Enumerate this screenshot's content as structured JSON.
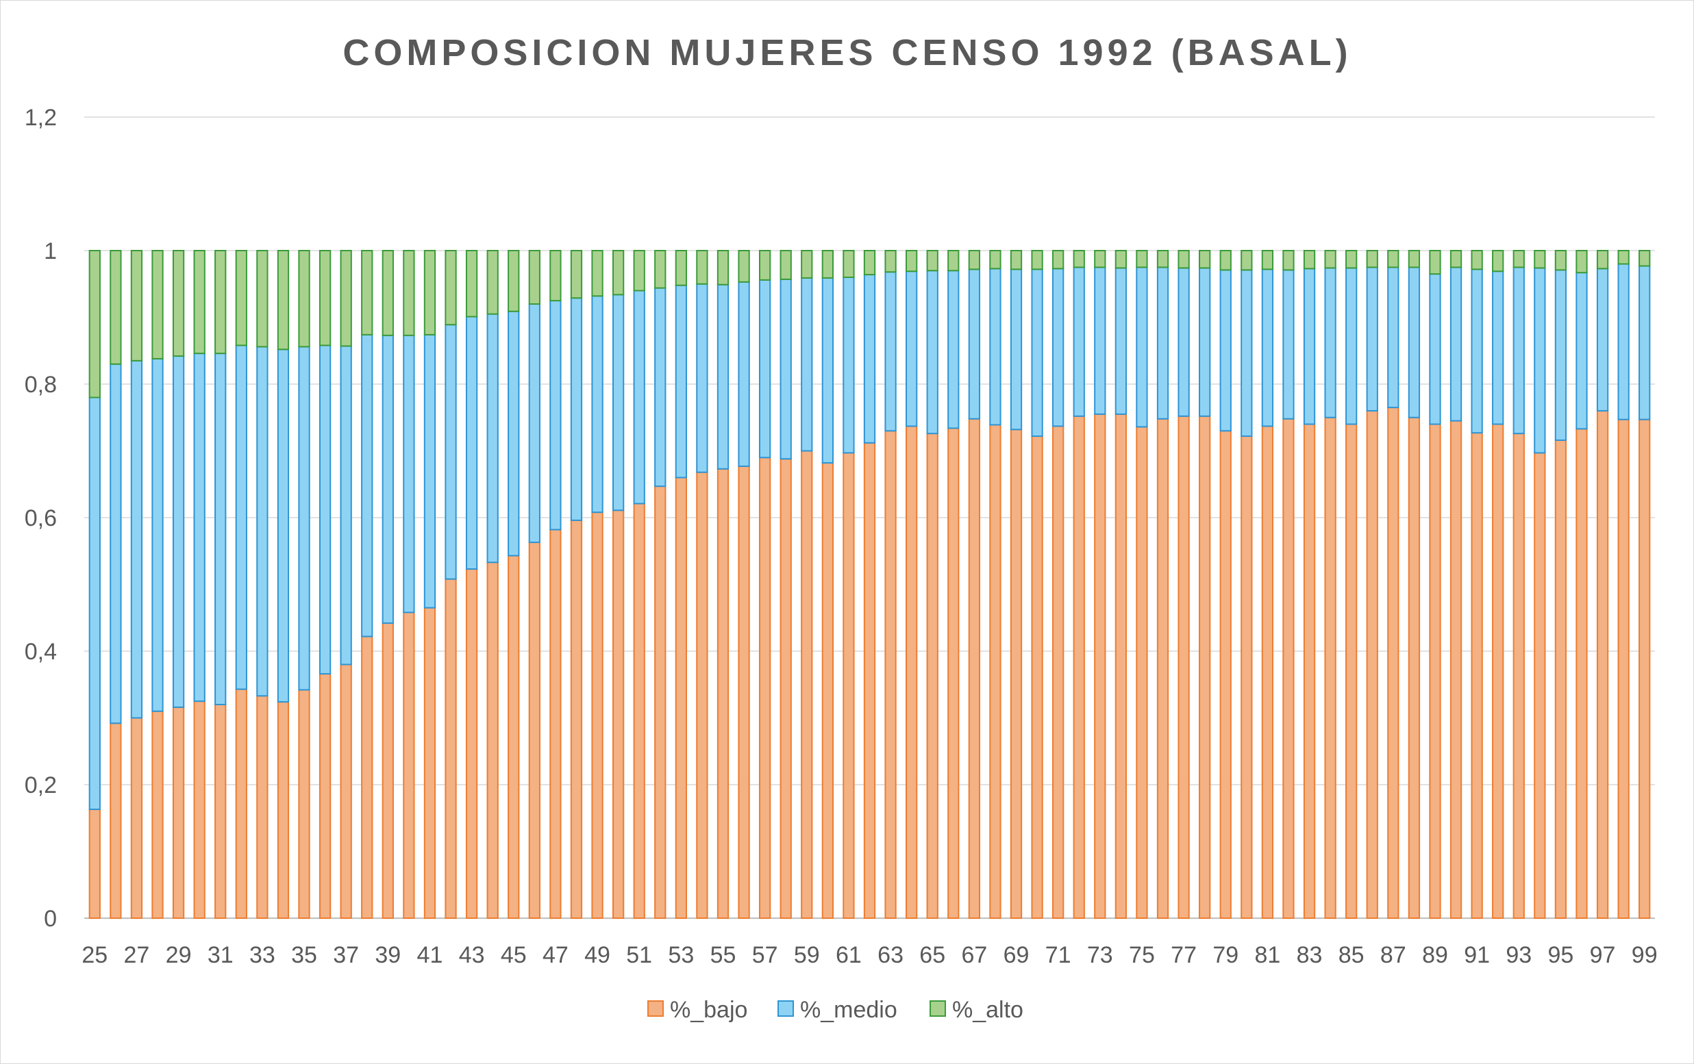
{
  "chart_data": {
    "type": "bar",
    "stacked": true,
    "title": "COMPOSICION MUJERES CENSO 1992 (BASAL)",
    "xlabel": "",
    "ylabel": "",
    "ylim": [
      0,
      1.2
    ],
    "yticks": [
      "0",
      "0,2",
      "0,4",
      "0,6",
      "0,8",
      "1",
      "1,2"
    ],
    "grid": true,
    "legend_position": "bottom",
    "categories": [
      25,
      26,
      27,
      28,
      29,
      30,
      31,
      32,
      33,
      34,
      35,
      36,
      37,
      38,
      39,
      40,
      41,
      42,
      43,
      44,
      45,
      46,
      47,
      48,
      49,
      50,
      51,
      52,
      53,
      54,
      55,
      56,
      57,
      58,
      59,
      60,
      61,
      62,
      63,
      64,
      65,
      66,
      67,
      68,
      69,
      70,
      71,
      72,
      73,
      74,
      75,
      76,
      77,
      78,
      79,
      80,
      81,
      82,
      83,
      84,
      85,
      86,
      87,
      88,
      89,
      90,
      91,
      92,
      93,
      94,
      95,
      96,
      97,
      98,
      99
    ],
    "tick_labels": [
      "25",
      "27",
      "29",
      "31",
      "33",
      "35",
      "37",
      "39",
      "41",
      "43",
      "45",
      "47",
      "49",
      "51",
      "53",
      "55",
      "57",
      "59",
      "61",
      "63",
      "65",
      "67",
      "69",
      "71",
      "73",
      "75",
      "77",
      "79",
      "81",
      "83",
      "85",
      "87",
      "89",
      "91",
      "93",
      "95",
      "97",
      "99"
    ],
    "series": [
      {
        "name": "%_bajo",
        "color": "#f4b183",
        "border": "#ed7d31",
        "values": [
          0.163,
          0.292,
          0.3,
          0.31,
          0.316,
          0.325,
          0.32,
          0.343,
          0.333,
          0.324,
          0.342,
          0.366,
          0.38,
          0.422,
          0.442,
          0.458,
          0.465,
          0.508,
          0.523,
          0.533,
          0.543,
          0.563,
          0.582,
          0.596,
          0.608,
          0.611,
          0.621,
          0.647,
          0.66,
          0.668,
          0.673,
          0.677,
          0.69,
          0.688,
          0.7,
          0.682,
          0.697,
          0.712,
          0.73,
          0.737,
          0.726,
          0.734,
          0.748,
          0.739,
          0.732,
          0.722,
          0.737,
          0.752,
          0.755,
          0.755,
          0.736,
          0.748,
          0.752,
          0.752,
          0.73,
          0.722,
          0.737,
          0.748,
          0.74,
          0.75,
          0.74,
          0.76,
          0.765,
          0.75,
          0.74,
          0.745,
          0.727,
          0.74,
          0.726,
          0.697,
          0.716,
          0.733,
          0.76,
          0.747,
          0.747
        ]
      },
      {
        "name": "%_medio",
        "color": "#8fd3f4",
        "border": "#2e94d4",
        "values": [
          0.617,
          0.538,
          0.535,
          0.528,
          0.526,
          0.521,
          0.526,
          0.515,
          0.523,
          0.528,
          0.514,
          0.492,
          0.477,
          0.452,
          0.431,
          0.415,
          0.409,
          0.381,
          0.378,
          0.372,
          0.366,
          0.357,
          0.343,
          0.333,
          0.324,
          0.323,
          0.319,
          0.297,
          0.288,
          0.282,
          0.276,
          0.276,
          0.266,
          0.269,
          0.259,
          0.277,
          0.263,
          0.252,
          0.238,
          0.232,
          0.244,
          0.236,
          0.224,
          0.234,
          0.24,
          0.25,
          0.236,
          0.223,
          0.22,
          0.219,
          0.239,
          0.227,
          0.222,
          0.222,
          0.241,
          0.249,
          0.235,
          0.223,
          0.233,
          0.224,
          0.234,
          0.215,
          0.21,
          0.225,
          0.225,
          0.23,
          0.245,
          0.229,
          0.249,
          0.277,
          0.255,
          0.234,
          0.213,
          0.233,
          0.23
        ]
      },
      {
        "name": "%_alto",
        "color": "#a9d18e",
        "border": "#3a9b3a",
        "values": [
          0.22,
          0.17,
          0.165,
          0.162,
          0.158,
          0.154,
          0.154,
          0.142,
          0.144,
          0.148,
          0.144,
          0.142,
          0.143,
          0.126,
          0.127,
          0.127,
          0.126,
          0.111,
          0.099,
          0.095,
          0.091,
          0.08,
          0.075,
          0.071,
          0.068,
          0.066,
          0.06,
          0.056,
          0.052,
          0.05,
          0.051,
          0.047,
          0.044,
          0.043,
          0.041,
          0.041,
          0.04,
          0.036,
          0.032,
          0.031,
          0.03,
          0.03,
          0.028,
          0.027,
          0.028,
          0.028,
          0.027,
          0.025,
          0.025,
          0.026,
          0.025,
          0.025,
          0.026,
          0.026,
          0.029,
          0.029,
          0.028,
          0.029,
          0.027,
          0.026,
          0.026,
          0.025,
          0.025,
          0.025,
          0.035,
          0.025,
          0.028,
          0.031,
          0.025,
          0.026,
          0.029,
          0.033,
          0.027,
          0.02,
          0.023
        ]
      }
    ]
  }
}
